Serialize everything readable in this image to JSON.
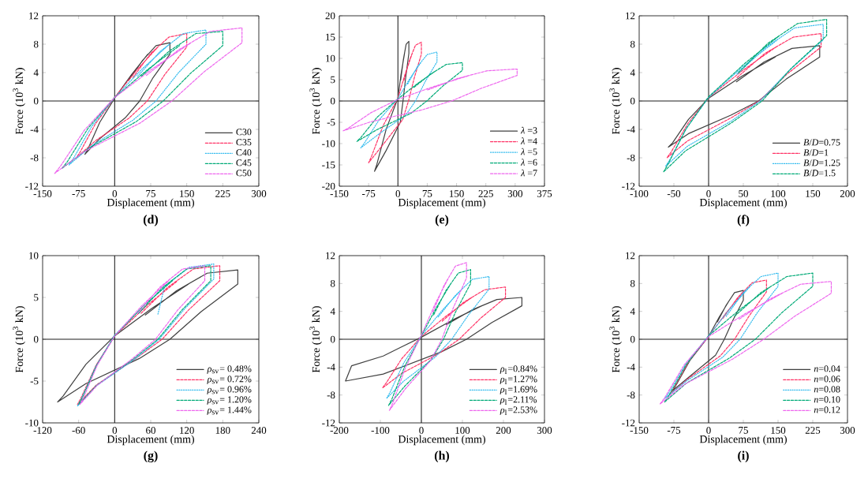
{
  "chart_data": [
    {
      "type": "line",
      "title": "(d)",
      "xlabel": "Displacement (mm)",
      "ylabel": "Force (10$^{3}$ kN)",
      "xlim": [
        -150,
        300
      ],
      "ylim": [
        -12,
        12
      ],
      "xticks": [
        -150,
        -75,
        0,
        75,
        150,
        225,
        300
      ],
      "yticks": [
        -12,
        -8,
        -4,
        0,
        4,
        8,
        12
      ],
      "legend": "bottom right",
      "ref_lines": [
        {
          "axis": "x",
          "value": 0
        },
        {
          "axis": "y",
          "value": 0
        }
      ],
      "series": [
        {
          "name": "C30",
          "color": "#404040",
          "line_style": "solid",
          "x": [
            29,
            58,
            86,
            115,
            115,
            80,
            52,
            23,
            -31,
            -62,
            -56,
            -31,
            0,
            35,
            69
          ],
          "values": [
            2.9,
            5.7,
            7.8,
            8.2,
            6.6,
            3.3,
            0,
            -2.3,
            -5.3,
            -7.5,
            -6.8,
            -3,
            0.4,
            3.7,
            6.6
          ]
        },
        {
          "name": "C35",
          "color": "#ff3366",
          "line_style": "dashed",
          "x": [
            38,
            75,
            113,
            150,
            150,
            105,
            68,
            30,
            -40,
            -80,
            -72,
            -40,
            0,
            45,
            90
          ],
          "values": [
            3.3,
            6.7,
            9,
            9.5,
            7.6,
            3.8,
            0,
            -2.4,
            -5.6,
            -8,
            -7.2,
            -3.2,
            0.5,
            4.3,
            7.6
          ]
        },
        {
          "name": "C40",
          "color": "#33bbee",
          "line_style": "dotted",
          "x": [
            48,
            95,
            143,
            190,
            190,
            133,
            86,
            38,
            -48,
            -95,
            -86,
            -48,
            0,
            57,
            114
          ],
          "values": [
            3.5,
            7,
            9.5,
            10,
            8,
            4,
            0,
            -2.7,
            -6.3,
            -9,
            -8.1,
            -3.6,
            0.5,
            4.5,
            8
          ]
        },
        {
          "name": "C45",
          "color": "#00aa77",
          "line_style": "dashed",
          "x": [
            56,
            113,
            169,
            225,
            225,
            158,
            101,
            45,
            -55,
            -110,
            -99,
            -55,
            0,
            68,
            135
          ],
          "values": [
            3.5,
            7,
            9.5,
            9.8,
            7.8,
            3.9,
            0,
            -2.9,
            -6.7,
            -9.5,
            -8.6,
            -3.8,
            0.5,
            4.4,
            7.8
          ]
        },
        {
          "name": "C50",
          "color": "#ee66ee",
          "line_style": "dashed",
          "x": [
            66,
            133,
            199,
            265,
            265,
            186,
            119,
            53,
            -63,
            -125,
            -113,
            -63,
            0,
            80,
            159
          ],
          "values": [
            3.6,
            7.2,
            9.8,
            10.3,
            8.2,
            4.1,
            0,
            -3.1,
            -7.1,
            -10.2,
            -9.2,
            -4.1,
            0.5,
            4.6,
            8.2
          ]
        }
      ]
    },
    {
      "type": "line",
      "title": "(e)",
      "xlabel": "Displacement (mm)",
      "ylabel": "Force (10$^{3}$ kN)",
      "xlim": [
        -150,
        375
      ],
      "ylim": [
        -20,
        20
      ],
      "xticks": [
        -150,
        -75,
        0,
        75,
        150,
        225,
        300,
        375
      ],
      "yticks": [
        -20,
        -15,
        -10,
        -5,
        0,
        5,
        10,
        15,
        20
      ],
      "legend": "bottom right",
      "ref_lines": [
        {
          "axis": "x",
          "value": 0
        },
        {
          "axis": "y",
          "value": 0
        }
      ],
      "series": [
        {
          "name": "*λ* =3",
          "color": "#404040",
          "line_style": "solid",
          "x": [
            7,
            14,
            21,
            28,
            28,
            20,
            13,
            6,
            -30,
            -60,
            -54,
            -30,
            0,
            8,
            17
          ],
          "values": [
            4.9,
            9.8,
            13.3,
            14,
            11.2,
            5.6,
            0,
            -5,
            -11.6,
            -16.5,
            -14.9,
            -6.6,
            0.7,
            6.3,
            11.2
          ]
        },
        {
          "name": "*λ* =4",
          "color": "#ff3366",
          "line_style": "dashed",
          "x": [
            15,
            30,
            45,
            60,
            60,
            42,
            27,
            12,
            -38,
            -75,
            -68,
            -38,
            0,
            18,
            36
          ],
          "values": [
            4.8,
            9.7,
            13.1,
            13.8,
            11,
            5.5,
            0,
            -4.4,
            -10.2,
            -14.5,
            -13.1,
            -5.8,
            0.7,
            6.2,
            11
          ]
        },
        {
          "name": "*λ* =5",
          "color": "#33bbee",
          "line_style": "dotted",
          "x": [
            25,
            50,
            75,
            100,
            100,
            70,
            45,
            20,
            -48,
            -95,
            -86,
            -48,
            0,
            30,
            60
          ],
          "values": [
            4,
            8.1,
            10.9,
            11.5,
            9.2,
            4.6,
            0,
            -3.3,
            -7.7,
            -11,
            -9.9,
            -4.4,
            0.6,
            5.2,
            9.2
          ]
        },
        {
          "name": "*λ* =6",
          "color": "#00aa77",
          "line_style": "dashed",
          "x": [
            41,
            83,
            124,
            165,
            165,
            116,
            74,
            33,
            -53,
            -105,
            -95,
            -53,
            0,
            50,
            99
          ],
          "values": [
            3.2,
            6.3,
            8.6,
            9,
            7.2,
            3.6,
            0,
            -2.9,
            -6.7,
            -9.5,
            -8.6,
            -3.8,
            0.5,
            4.1,
            7.2
          ]
        },
        {
          "name": "*λ* =7",
          "color": "#ee66ee",
          "line_style": "dashed",
          "x": [
            76,
            153,
            229,
            305,
            305,
            214,
            137,
            61,
            -70,
            -140,
            -126,
            -70,
            0,
            92,
            183
          ],
          "values": [
            2.6,
            5.3,
            7.1,
            7.5,
            6,
            3,
            0,
            -2.1,
            -4.9,
            -7,
            -6.3,
            -2.8,
            0.4,
            3.4,
            6
          ]
        }
      ]
    },
    {
      "type": "line",
      "title": "(f)",
      "xlabel": "Displacement (mm)",
      "ylabel": "Force (10$^{3}$ kN)",
      "xlim": [
        -100,
        200
      ],
      "ylim": [
        -12,
        12
      ],
      "xticks": [
        -100,
        -50,
        0,
        50,
        100,
        150,
        200
      ],
      "yticks": [
        -12,
        -8,
        -4,
        0,
        4,
        8,
        12
      ],
      "legend": "bottom right",
      "ref_lines": [
        {
          "axis": "x",
          "value": 0
        },
        {
          "axis": "y",
          "value": 0
        }
      ],
      "series": [
        {
          "name": "*B*/*D*=0.75",
          "color": "#404040",
          "line_style": "solid",
          "x": [
            40,
            80,
            120,
            160,
            160,
            112,
            72,
            32,
            -29,
            -58,
            -52,
            -29,
            0,
            48,
            96
          ],
          "values": [
            2.7,
            5.5,
            7.4,
            7.8,
            6.2,
            3.1,
            0,
            -2,
            -4.6,
            -6.5,
            -5.9,
            -2.6,
            0.4,
            3.5,
            6.2
          ]
        },
        {
          "name": "*B*/*D*=1",
          "color": "#ff3366",
          "line_style": "dashed",
          "x": [
            41,
            81,
            122,
            162,
            162,
            113,
            73,
            32,
            -30,
            -60,
            -54,
            -30,
            0,
            49,
            97
          ],
          "values": [
            3.3,
            6.7,
            9,
            9.5,
            7.6,
            3.8,
            0,
            -2.4,
            -5.6,
            -8,
            -7.2,
            -3.2,
            0.5,
            4.3,
            7.6
          ]
        },
        {
          "name": "*B*/*D*=1.25",
          "color": "#33bbee",
          "line_style": "dotted",
          "x": [
            41,
            83,
            124,
            165,
            165,
            116,
            74,
            33,
            -31,
            -62,
            -56,
            -31,
            0,
            50,
            99
          ],
          "values": [
            3.8,
            7.6,
            10.3,
            10.8,
            8.6,
            4.3,
            0,
            -2.8,
            -6.4,
            -9.2,
            -8.3,
            -3.7,
            0.5,
            4.9,
            8.6
          ]
        },
        {
          "name": "*B*/*D*=1.5",
          "color": "#00aa77",
          "line_style": "dashed",
          "x": [
            43,
            85,
            128,
            170,
            170,
            119,
            77,
            34,
            -33,
            -65,
            -59,
            -33,
            0,
            51,
            102
          ],
          "values": [
            4,
            8.1,
            10.9,
            11.5,
            9.2,
            4.6,
            0,
            -3,
            -7,
            -10,
            -9,
            -4,
            0.6,
            5.2,
            9.2
          ]
        }
      ]
    },
    {
      "type": "line",
      "title": "(g)",
      "xlabel": "Displacement (mm)",
      "ylabel": "Force (10$^{3}$ kN)",
      "xlim": [
        -120,
        240
      ],
      "ylim": [
        -10,
        10
      ],
      "xticks": [
        -120,
        -60,
        0,
        60,
        120,
        180,
        240
      ],
      "yticks": [
        -10,
        -5,
        0,
        5,
        10
      ],
      "legend": "bottom right",
      "ref_lines": [
        {
          "axis": "x",
          "value": 0
        },
        {
          "axis": "y",
          "value": 0
        }
      ],
      "series": [
        {
          "name": "*ρ*$_{sv}$= 0.48%",
          "color": "#404040",
          "line_style": "solid",
          "x": [
            51,
            103,
            154,
            205,
            205,
            144,
            92,
            41,
            -48,
            -95,
            -86,
            -48,
            0,
            62,
            123
          ],
          "values": [
            2.9,
            5.8,
            7.9,
            8.3,
            6.6,
            3.3,
            0,
            -2.3,
            -5.3,
            -7.5,
            -6.8,
            -3,
            0.4,
            3.7,
            6.6
          ]
        },
        {
          "name": "*ρ*$_{sv}$= 0.72%",
          "color": "#ff3366",
          "line_style": "dashed",
          "x": [
            44,
            88,
            131,
            175,
            175,
            123,
            79,
            35,
            -31,
            -62,
            -56,
            -31,
            0,
            53,
            105
          ],
          "values": [
            3.1,
            6.2,
            8.4,
            8.8,
            7,
            3.5,
            0,
            -2.3,
            -5.5,
            -7.8,
            -7,
            -3.1,
            0.4,
            4,
            7
          ]
        },
        {
          "name": "*ρ*$_{sv}$= 0.96%",
          "color": "#33bbee",
          "line_style": "dotted",
          "x": [
            72,
            83,
            124,
            165,
            165,
            116,
            74,
            33,
            -31,
            -62,
            -56,
            -31,
            0,
            50,
            99
          ],
          "values": [
            3,
            6.3,
            8.6,
            9,
            7.2,
            3.6,
            0,
            -2.4,
            -5.6,
            -8,
            -7.2,
            -3.2,
            0.5,
            4.1,
            7.2
          ]
        },
        {
          "name": "*ρ*$_{sv}$= 1.20%",
          "color": "#00aa77",
          "line_style": "dashed",
          "x": [
            40,
            80,
            120,
            160,
            160,
            112,
            72,
            32,
            -30,
            -60,
            -54,
            -30,
            0,
            48,
            96
          ],
          "values": [
            3.1,
            6.2,
            8.4,
            8.8,
            7,
            3.5,
            0,
            -2.3,
            -5.5,
            -7.8,
            -7,
            -3.1,
            0.4,
            4,
            7
          ]
        },
        {
          "name": "*ρ*$_{sv}$= 1.44%",
          "color": "#ee66ee",
          "line_style": "dashed",
          "x": [
            38,
            75,
            113,
            150,
            150,
            105,
            68,
            30,
            -29,
            -58,
            -52,
            -29,
            0,
            45,
            90
          ],
          "values": [
            3.1,
            6.2,
            8.4,
            8.8,
            7,
            3.5,
            0,
            -2.3,
            -5.5,
            -7.8,
            -7,
            -3.1,
            0.4,
            4,
            7
          ]
        }
      ]
    },
    {
      "type": "line",
      "title": "(h)",
      "xlabel": "Displacement (mm)",
      "ylabel": "Force (10$^{3}$ kN)",
      "xlim": [
        -200,
        300
      ],
      "ylim": [
        -12,
        12
      ],
      "xticks": [
        -200,
        -100,
        0,
        100,
        200,
        300
      ],
      "yticks": [
        -12,
        -8,
        -4,
        0,
        4,
        8,
        12
      ],
      "legend": "bottom right",
      "ref_lines": [
        {
          "axis": "x",
          "value": 0
        },
        {
          "axis": "y",
          "value": 0
        }
      ],
      "series": [
        {
          "name": "*ρ*$_{l}$=0.84%",
          "color": "#404040",
          "line_style": "solid",
          "x": [
            61,
            123,
            184,
            245,
            245,
            172,
            110,
            49,
            -93,
            -185,
            -170,
            -93,
            0,
            74,
            147
          ],
          "values": [
            2.1,
            4.2,
            5.7,
            6,
            4.8,
            2.4,
            0,
            -1.8,
            -5,
            -6,
            -3.8,
            -2.4,
            0.3,
            2.7,
            4.8
          ]
        },
        {
          "name": "*ρ*$_{l}$=1.27%",
          "color": "#ff3366",
          "line_style": "dashed",
          "x": [
            51,
            103,
            154,
            205,
            205,
            144,
            92,
            41,
            -48,
            -95,
            -86,
            -48,
            0,
            62,
            123
          ],
          "values": [
            2.6,
            5.3,
            7.1,
            7.5,
            6,
            3,
            0,
            -2.1,
            -4.9,
            -7,
            -6.3,
            -2.8,
            0.4,
            3.4,
            6
          ]
        },
        {
          "name": "*ρ*$_{l}$=1.69%",
          "color": "#33bbee",
          "line_style": "dotted",
          "x": [
            41,
            83,
            124,
            165,
            165,
            116,
            74,
            33,
            -43,
            -85,
            -77,
            -43,
            0,
            50,
            99
          ],
          "values": [
            3.2,
            6.3,
            8.6,
            9,
            7.2,
            3.6,
            0,
            -2.6,
            -6,
            -8.5,
            -7.7,
            -3.4,
            0.5,
            4.1,
            7.2
          ]
        },
        {
          "name": "*ρ*$_{l}$=2.11%",
          "color": "#00aa77",
          "line_style": "dashed",
          "x": [
            30,
            60,
            90,
            120,
            120,
            84,
            54,
            24,
            -40,
            -80,
            -72,
            -40,
            0,
            36,
            72
          ],
          "values": [
            3.5,
            7,
            9.5,
            10,
            8,
            4,
            0,
            -2.9,
            -6.7,
            -9.5,
            -8.6,
            -3.8,
            0.5,
            4.5,
            8
          ]
        },
        {
          "name": "*ρ*$_{l}$=2.53%",
          "color": "#ee66ee",
          "line_style": "dashed",
          "x": [
            28,
            55,
            83,
            110,
            110,
            77,
            50,
            22,
            -39,
            -78,
            -70,
            -39,
            0,
            33,
            66
          ],
          "values": [
            3.9,
            7.7,
            10.5,
            11,
            8.8,
            4.4,
            0,
            -3.1,
            -7.1,
            -10.2,
            -9.2,
            -4.1,
            0.6,
            5,
            8.8
          ]
        }
      ]
    },
    {
      "type": "line",
      "title": "(i)",
      "xlabel": "Displacement (mm)",
      "ylabel": "Force (10$^{3}$ kN)",
      "xlim": [
        -150,
        300
      ],
      "ylim": [
        -12,
        12
      ],
      "xticks": [
        -150,
        -75,
        0,
        75,
        150,
        225,
        300
      ],
      "yticks": [
        -12,
        -8,
        -4,
        0,
        4,
        8,
        12
      ],
      "legend": "bottom right",
      "ref_lines": [
        {
          "axis": "x",
          "value": 0
        },
        {
          "axis": "y",
          "value": 0
        }
      ],
      "series": [
        {
          "name": "*n*=0.04",
          "color": "#404040",
          "line_style": "solid",
          "x": [
            19,
            38,
            56,
            75,
            75,
            53,
            34,
            15,
            -40,
            -80,
            -72,
            -40,
            0,
            23,
            45
          ],
          "values": [
            2.5,
            4.9,
            6.7,
            7,
            5.6,
            2.8,
            0,
            -2.3,
            -5.3,
            -7.5,
            -6.8,
            -3,
            0.4,
            3.2,
            5.6
          ]
        },
        {
          "name": "*n*=0.06",
          "color": "#ff3366",
          "line_style": "dashed",
          "x": [
            31,
            63,
            94,
            125,
            125,
            88,
            56,
            25,
            -43,
            -85,
            -77,
            -43,
            0,
            38,
            75
          ],
          "values": [
            3,
            6,
            8.1,
            8.5,
            6.8,
            3.4,
            0,
            -2.4,
            -5.6,
            -8,
            -7.2,
            -3.2,
            0.4,
            3.8,
            6.8
          ]
        },
        {
          "name": "*n*=0.08",
          "color": "#33bbee",
          "line_style": "dotted",
          "x": [
            38,
            75,
            113,
            150,
            150,
            105,
            68,
            30,
            -48,
            -95,
            -86,
            -48,
            0,
            45,
            90
          ],
          "values": [
            3.3,
            6.7,
            9,
            9.5,
            7.6,
            3.8,
            0,
            -2.6,
            -6,
            -8.5,
            -7.7,
            -3.4,
            0.5,
            4.3,
            7.6
          ]
        },
        {
          "name": "*n*=0.10",
          "color": "#00aa77",
          "line_style": "dashed",
          "x": [
            56,
            113,
            169,
            225,
            225,
            158,
            101,
            45,
            -48,
            -95,
            -86,
            -48,
            0,
            68,
            135
          ],
          "values": [
            3.3,
            6.7,
            9,
            9.5,
            7.6,
            3.8,
            0,
            -2.7,
            -6.3,
            -9,
            -8.1,
            -3.6,
            0.5,
            4.3,
            7.6
          ]
        },
        {
          "name": "*n*=0.12",
          "color": "#ee66ee",
          "line_style": "dashed",
          "x": [
            66,
            133,
            199,
            265,
            265,
            186,
            119,
            53,
            -53,
            -105,
            -95,
            -53,
            0,
            80,
            159
          ],
          "values": [
            2.9,
            5.8,
            7.9,
            8.3,
            6.6,
            3.3,
            0,
            -2.8,
            -6.5,
            -9.3,
            -8.4,
            -3.7,
            0.4,
            3.7,
            6.6
          ]
        }
      ]
    }
  ]
}
